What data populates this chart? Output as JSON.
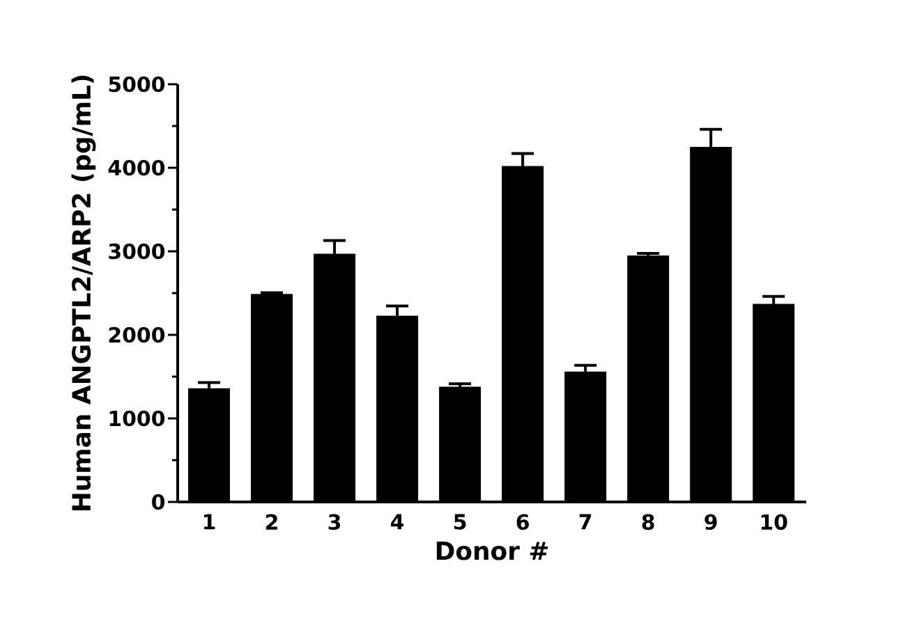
{
  "chart_data": {
    "type": "bar",
    "xlabel": "Donor #",
    "ylabel": "Human ANGPTL2/ARP2 (pg/mL)",
    "categories": [
      "1",
      "2",
      "3",
      "4",
      "5",
      "6",
      "7",
      "8",
      "9",
      "10"
    ],
    "values": [
      1360,
      2490,
      2970,
      2230,
      1380,
      4020,
      1560,
      2950,
      4250,
      2370
    ],
    "errors": [
      70,
      15,
      160,
      115,
      35,
      150,
      75,
      25,
      210,
      90
    ],
    "color": "#000000",
    "ylim": [
      0,
      5000
    ],
    "yticks": [
      0,
      1000,
      2000,
      3000,
      4000,
      5000
    ],
    "grid": false
  }
}
